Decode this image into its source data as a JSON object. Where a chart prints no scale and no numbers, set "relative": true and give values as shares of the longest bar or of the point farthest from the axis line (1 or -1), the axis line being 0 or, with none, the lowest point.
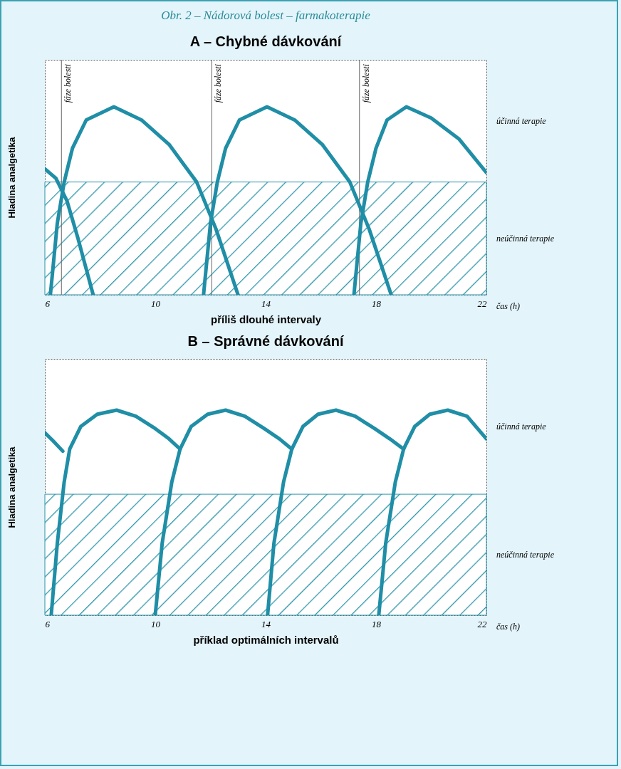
{
  "chart_data": [
    {
      "type": "line",
      "title": "Obr. 2 – Nádorová bolest – farmakoterapie",
      "subtitle": "A – Chybné dávkování",
      "xlabel": "příliš dlouhé intervaly",
      "ylabel": "Hladina analgetika",
      "relative": true,
      "xlim": [
        6,
        22
      ],
      "xticks": [
        6,
        10,
        14,
        18,
        22
      ],
      "line_style": "solid",
      "series": [
        {
          "color": "#1f8ea6",
          "x": [
            6,
            6.4,
            6.8,
            7.2,
            7.75
          ],
          "values": [
            0.67,
            0.62,
            0.5,
            0.3,
            0
          ]
        },
        {
          "color": "#1f8ea6",
          "x": [
            6.2,
            6.45,
            6.7,
            7.0,
            7.5,
            8.5,
            9.5,
            10.5,
            11.5,
            12.2,
            13.0
          ],
          "values": [
            0,
            0.38,
            0.6,
            0.78,
            0.93,
            1,
            0.93,
            0.8,
            0.6,
            0.35,
            0
          ]
        },
        {
          "color": "#1f8ea6",
          "x": [
            11.75,
            12.0,
            12.25,
            12.55,
            13.05,
            14.05,
            15.05,
            16.05,
            17.05,
            17.75,
            18.55
          ],
          "values": [
            0,
            0.38,
            0.6,
            0.78,
            0.93,
            1,
            0.93,
            0.8,
            0.6,
            0.35,
            0
          ]
        },
        {
          "color": "#1f8ea6",
          "x": [
            17.2,
            17.45,
            17.7,
            18.0,
            18.4,
            19.1,
            20.0,
            21.0,
            22
          ],
          "values": [
            0,
            0.38,
            0.6,
            0.78,
            0.93,
            1,
            0.94,
            0.83,
            0.65
          ]
        }
      ],
      "bands": [
        {
          "axis": "y",
          "from": 0,
          "to": 0.6,
          "label": "neúčinná terapie",
          "color": "#2a93a8"
        }
      ],
      "ref_lines": [
        {
          "axis": "x",
          "value": 6.6,
          "label": "fáze bolesti"
        },
        {
          "axis": "x",
          "value": 12.05,
          "label": "fáze bolesti"
        },
        {
          "axis": "x",
          "value": 17.4,
          "label": "fáze bolesti"
        }
      ],
      "annotations": [
        "čas (h)",
        "účinná terapie"
      ]
    },
    {
      "type": "line",
      "title": "B – Správné dávkování",
      "xlabel": "příklad optimálních intervalů",
      "ylabel": "Hladina analgetika",
      "relative": true,
      "xlim": [
        6,
        22
      ],
      "xticks": [
        6,
        10,
        14,
        18,
        22
      ],
      "line_style": "solid",
      "series": [
        {
          "color": "#1f8ea6",
          "x": [
            6,
            6.3,
            6.65
          ],
          "values": [
            0.89,
            0.85,
            0.8
          ]
        },
        {
          "color": "#1f8ea6",
          "x": [
            6.23,
            6.45,
            6.7,
            6.9,
            7.3,
            7.9,
            8.6,
            9.3,
            10.0,
            10.5,
            10.9
          ],
          "values": [
            0,
            0.35,
            0.65,
            0.81,
            0.92,
            0.98,
            1,
            0.97,
            0.91,
            0.86,
            0.81
          ]
        },
        {
          "color": "#1f8ea6",
          "x": [
            10.0,
            10.25,
            10.6,
            10.9,
            11.3,
            11.9,
            12.55,
            13.25,
            13.95,
            14.5,
            14.95
          ],
          "values": [
            0,
            0.35,
            0.65,
            0.81,
            0.92,
            0.98,
            1,
            0.97,
            0.91,
            0.86,
            0.81
          ]
        },
        {
          "color": "#1f8ea6",
          "x": [
            14.07,
            14.3,
            14.65,
            14.95,
            15.35,
            15.9,
            16.55,
            17.25,
            17.95,
            18.5,
            19.0
          ],
          "values": [
            0,
            0.35,
            0.65,
            0.81,
            0.92,
            0.98,
            1,
            0.97,
            0.91,
            0.86,
            0.81
          ]
        },
        {
          "color": "#1f8ea6",
          "x": [
            18.1,
            18.35,
            18.7,
            19.0,
            19.4,
            19.95,
            20.6,
            21.3,
            22
          ],
          "values": [
            0,
            0.35,
            0.65,
            0.81,
            0.92,
            0.98,
            1,
            0.97,
            0.86
          ]
        }
      ],
      "bands": [
        {
          "axis": "y",
          "from": 0,
          "to": 0.59,
          "label": "neúčinná terapie",
          "color": "#2a93a8"
        }
      ],
      "annotations": [
        "čas (h)",
        "účinná terapie"
      ]
    }
  ]
}
